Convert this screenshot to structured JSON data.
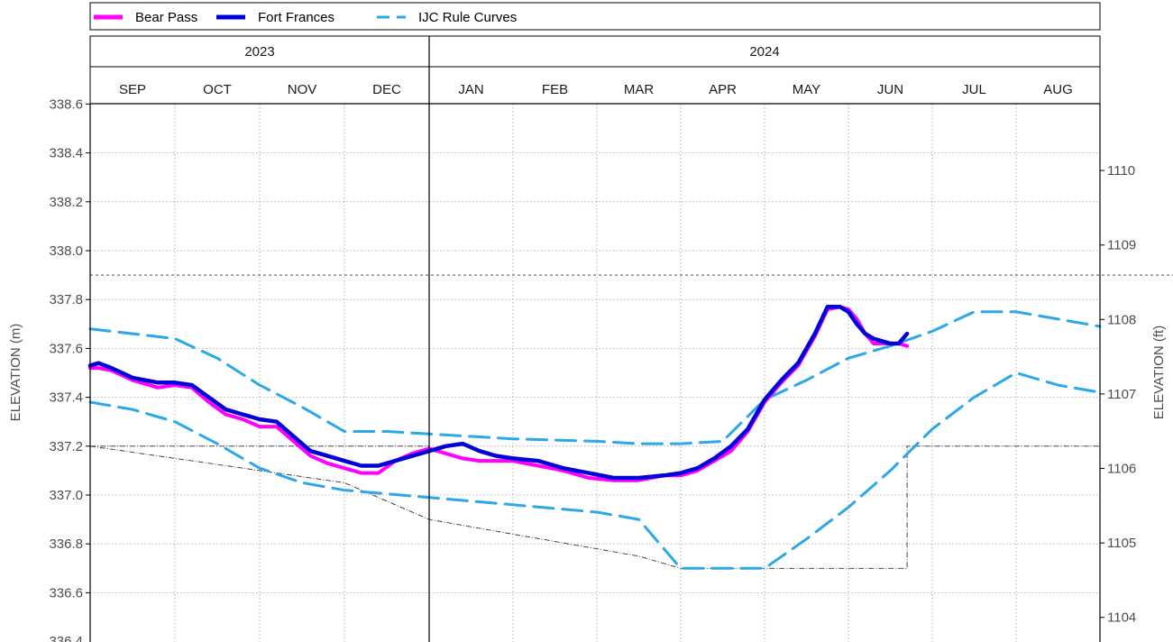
{
  "chart_data": {
    "type": "line",
    "legend": {
      "placement": "top",
      "items": [
        {
          "label": "Bear Pass",
          "color": "#ff00ff",
          "style": "solid"
        },
        {
          "label": "Fort Frances",
          "color": "#0000d9",
          "style": "solid"
        },
        {
          "label": "IJC Rule Curves",
          "color": "#2ba8e8",
          "style": "dashed"
        }
      ]
    },
    "years": [
      {
        "label": "2023",
        "start": 0,
        "end": 4
      },
      {
        "label": "2024",
        "start": 4,
        "end": 12
      }
    ],
    "months": [
      "SEP",
      "OCT",
      "NOV",
      "DEC",
      "JAN",
      "FEB",
      "MAR",
      "APR",
      "MAY",
      "JUN",
      "JUL",
      "AUG"
    ],
    "ylabel": "ELEVATION (m)",
    "y2label": "ELEVATION (ft)",
    "ylim": [
      336.4,
      338.6
    ],
    "yticks": [
      336.6,
      336.8,
      337.0,
      337.2,
      337.4,
      337.6,
      337.8,
      338.0,
      338.2,
      338.4,
      338.6
    ],
    "y_bottom_tick_label": "336.4",
    "y2ticks": [
      1104,
      1105,
      1106,
      1107,
      1108,
      1109,
      1110
    ],
    "x_unit": "months since 1 Sep 2023",
    "reference_lines": [
      {
        "name": "upper",
        "y": 337.9,
        "style": "dotted"
      },
      {
        "name": "lower",
        "y": 337.2,
        "style": "dash-dot"
      }
    ],
    "limit_band_dashdot": {
      "x": [
        0.0,
        3.0,
        4.0,
        6.5,
        7.0,
        8.0,
        9.7,
        9.7,
        9.75,
        12.0
      ],
      "y": [
        337.2,
        337.05,
        336.9,
        336.75,
        336.7,
        336.7,
        336.7,
        337.2,
        337.2,
        337.2
      ]
    },
    "series": [
      {
        "name": "Bear Pass",
        "color": "#ff00ff",
        "x": [
          0.0,
          0.1,
          0.25,
          0.5,
          0.8,
          1.0,
          1.2,
          1.4,
          1.6,
          1.8,
          2.0,
          2.2,
          2.4,
          2.6,
          2.8,
          3.0,
          3.2,
          3.4,
          3.6,
          3.8,
          4.0,
          4.2,
          4.4,
          4.6,
          4.8,
          5.0,
          5.3,
          5.6,
          5.9,
          6.2,
          6.5,
          6.8,
          7.0,
          7.2,
          7.4,
          7.6,
          7.8,
          8.0,
          8.2,
          8.4,
          8.6,
          8.75,
          8.9,
          9.0,
          9.1,
          9.2,
          9.3,
          9.4,
          9.5,
          9.6,
          9.7
        ],
        "y": [
          337.52,
          337.52,
          337.51,
          337.47,
          337.44,
          337.45,
          337.44,
          337.38,
          337.33,
          337.31,
          337.28,
          337.28,
          337.22,
          337.16,
          337.13,
          337.11,
          337.09,
          337.09,
          337.14,
          337.17,
          337.19,
          337.17,
          337.15,
          337.14,
          337.14,
          337.14,
          337.12,
          337.1,
          337.07,
          337.06,
          337.06,
          337.08,
          337.08,
          337.1,
          337.14,
          337.18,
          337.26,
          337.38,
          337.46,
          337.53,
          337.65,
          337.76,
          337.77,
          337.76,
          337.72,
          337.66,
          337.62,
          337.62,
          337.62,
          337.62,
          337.61
        ]
      },
      {
        "name": "Fort Frances",
        "color": "#0000d9",
        "x": [
          0.0,
          0.1,
          0.25,
          0.5,
          0.8,
          1.0,
          1.2,
          1.4,
          1.6,
          1.8,
          2.0,
          2.2,
          2.4,
          2.6,
          2.8,
          3.0,
          3.2,
          3.4,
          3.6,
          4.2,
          4.4,
          4.6,
          4.8,
          5.0,
          5.3,
          5.6,
          5.9,
          6.2,
          6.5,
          6.8,
          7.0,
          7.2,
          7.4,
          7.6,
          7.8,
          8.0,
          8.2,
          8.4,
          8.6,
          8.75,
          8.9,
          9.0,
          9.1,
          9.2,
          9.3,
          9.4,
          9.5,
          9.6,
          9.7
        ],
        "y": [
          337.53,
          337.54,
          337.52,
          337.48,
          337.46,
          337.46,
          337.45,
          337.4,
          337.35,
          337.33,
          337.31,
          337.3,
          337.24,
          337.18,
          337.16,
          337.14,
          337.12,
          337.12,
          337.14,
          337.2,
          337.21,
          337.18,
          337.16,
          337.15,
          337.14,
          337.11,
          337.09,
          337.07,
          337.07,
          337.08,
          337.09,
          337.11,
          337.15,
          337.2,
          337.27,
          337.39,
          337.47,
          337.54,
          337.66,
          337.77,
          337.77,
          337.75,
          337.7,
          337.66,
          337.64,
          337.63,
          337.62,
          337.62,
          337.66
        ]
      },
      {
        "name": "IJC Rule Curves (upper)",
        "color": "#2ba8e8",
        "x": [
          0.0,
          0.5,
          1.0,
          1.5,
          2.0,
          2.5,
          3.0,
          3.5,
          4.0,
          5.0,
          6.0,
          6.5,
          7.0,
          7.5,
          8.0,
          8.5,
          9.0,
          9.5,
          10.0,
          10.5,
          11.0,
          11.5,
          12.0
        ],
        "y": [
          337.68,
          337.66,
          337.64,
          337.56,
          337.45,
          337.36,
          337.26,
          337.26,
          337.25,
          337.23,
          337.22,
          337.21,
          337.21,
          337.22,
          337.39,
          337.47,
          337.56,
          337.61,
          337.67,
          337.75,
          337.75,
          337.72,
          337.69
        ]
      },
      {
        "name": "IJC Rule Curves (lower)",
        "color": "#2ba8e8",
        "x": [
          0.0,
          0.5,
          1.0,
          1.5,
          2.0,
          2.5,
          3.0,
          4.0,
          5.0,
          6.0,
          6.5,
          6.8,
          7.0,
          7.5,
          8.0,
          8.5,
          9.0,
          9.5,
          10.0,
          10.5,
          11.0,
          11.5,
          12.0
        ],
        "y": [
          337.38,
          337.35,
          337.3,
          337.21,
          337.11,
          337.05,
          337.02,
          336.99,
          336.96,
          336.93,
          336.9,
          336.78,
          336.7,
          336.7,
          336.7,
          336.82,
          336.95,
          337.1,
          337.27,
          337.4,
          337.5,
          337.45,
          337.42
        ]
      }
    ]
  }
}
